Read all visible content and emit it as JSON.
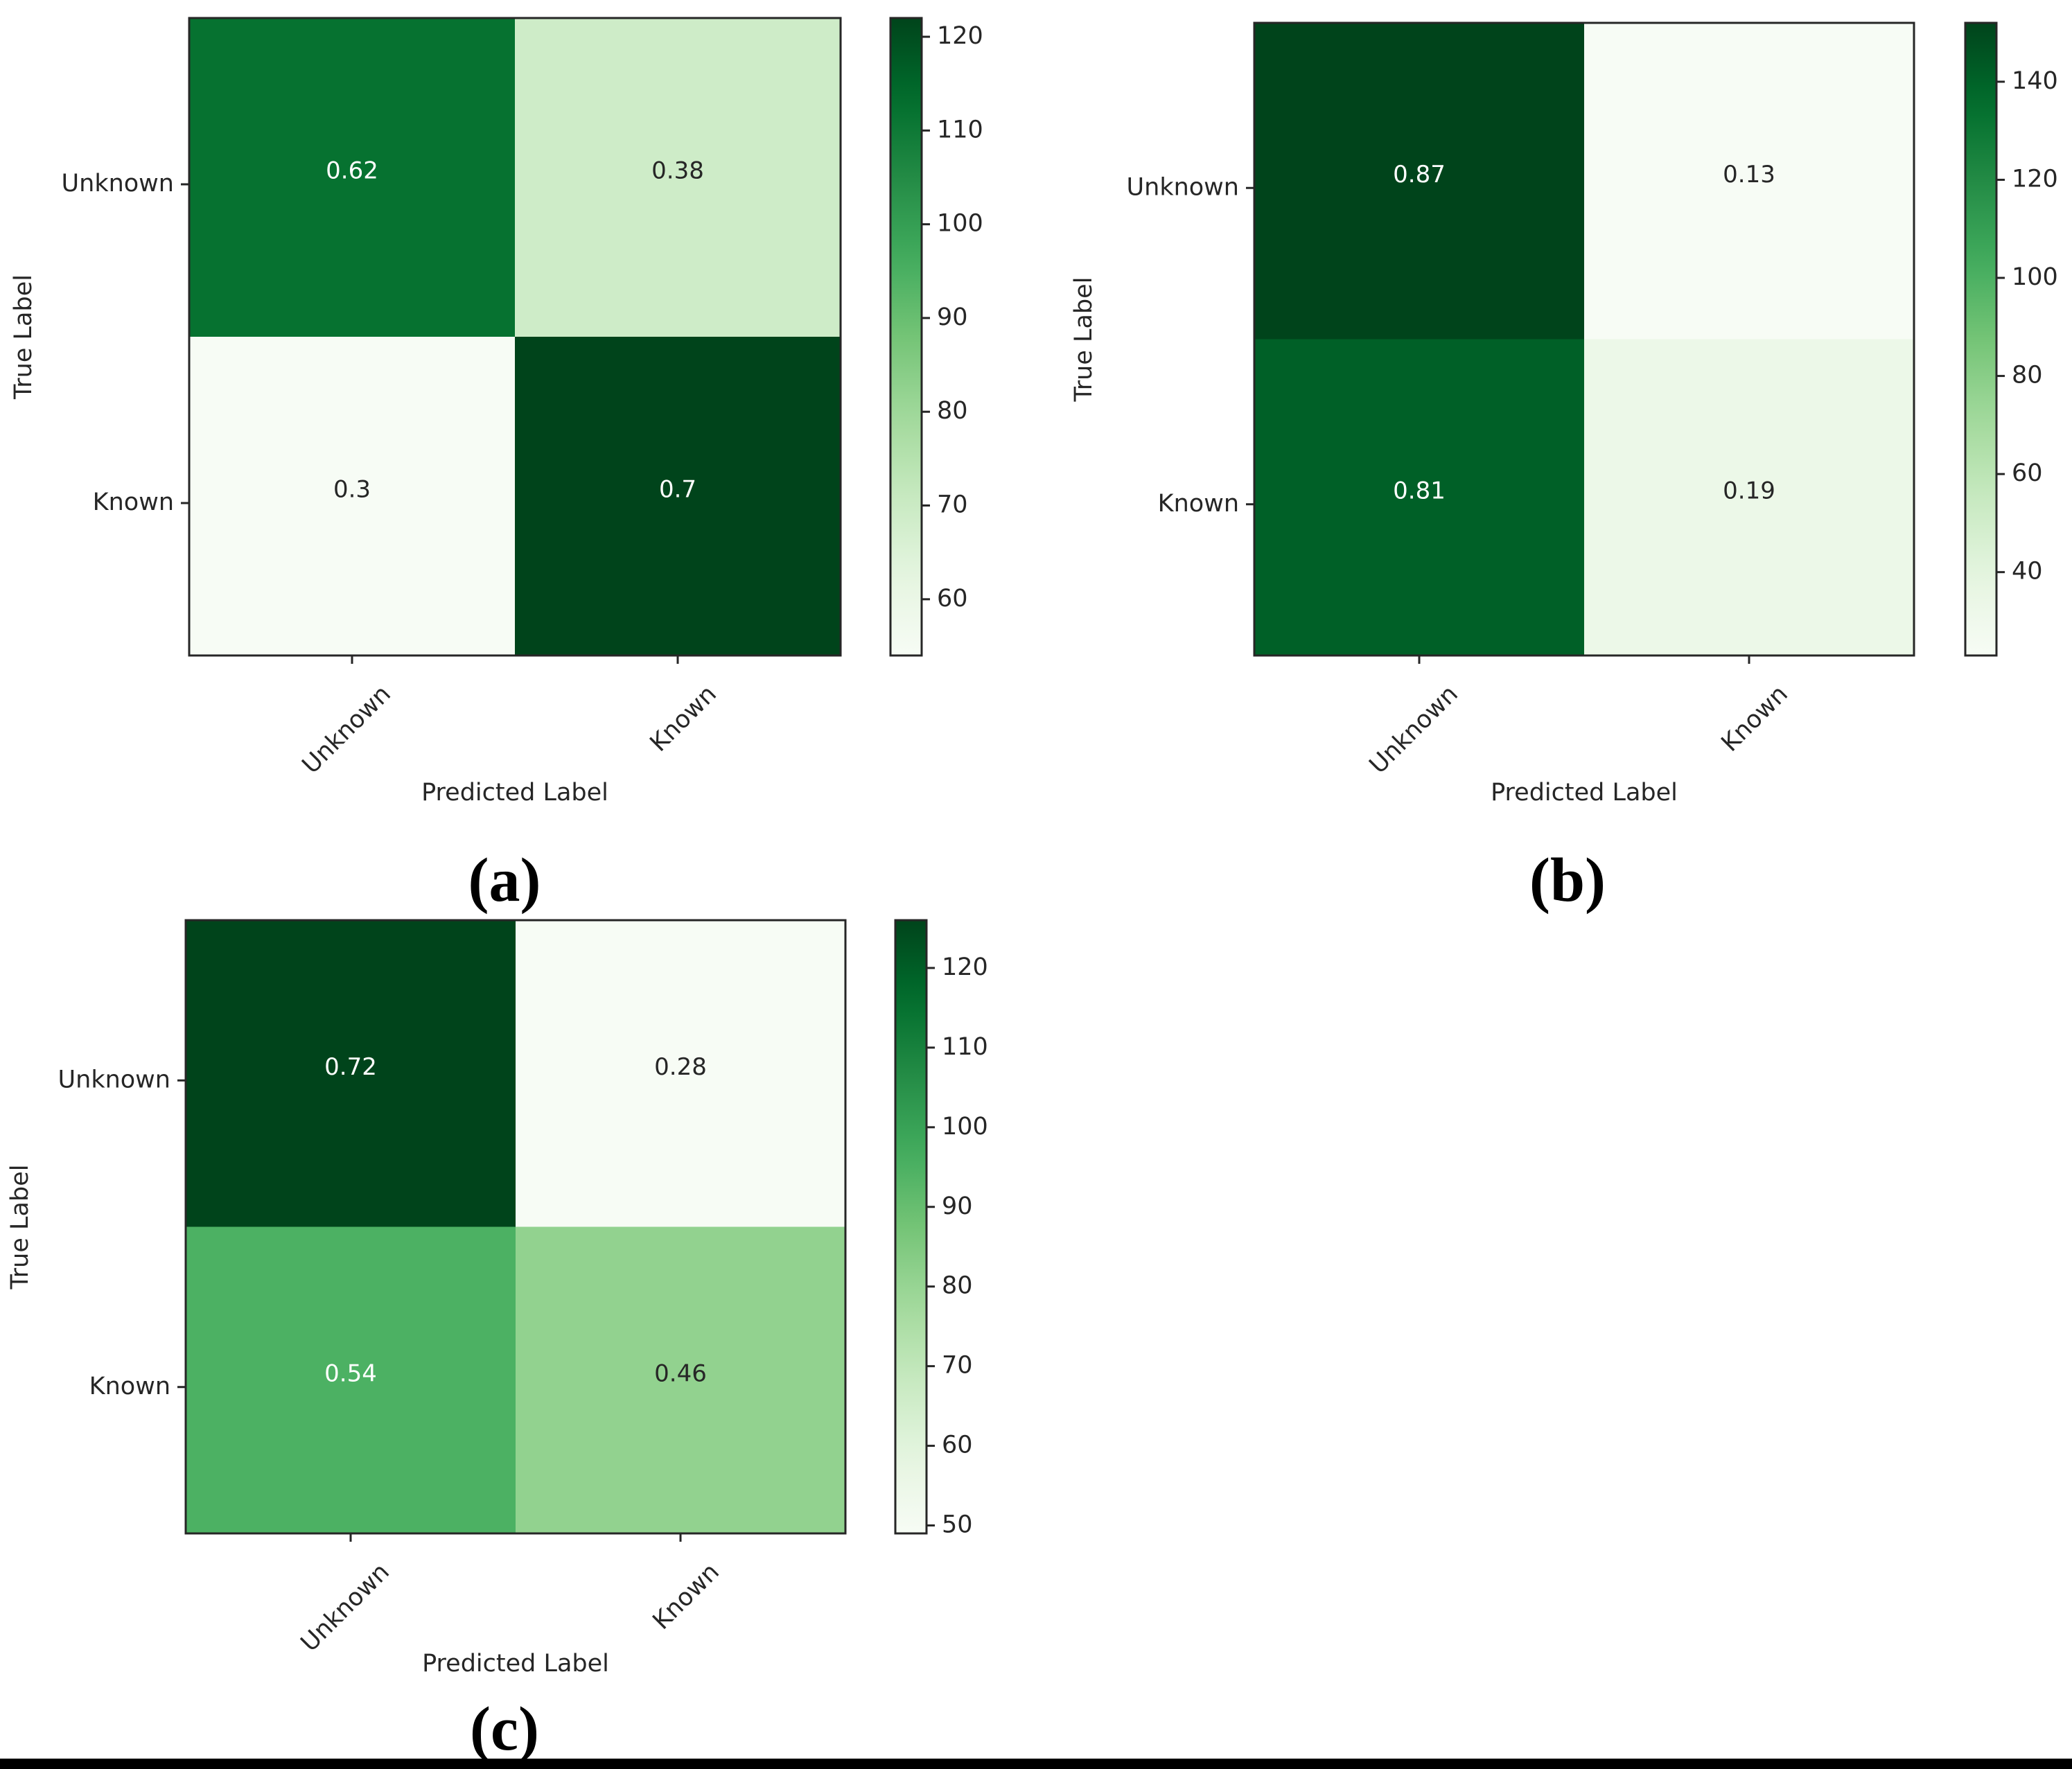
{
  "colors": {
    "cmap": [
      "#f7fcf5",
      "#e5f5e0",
      "#c7e9c0",
      "#a1d99b",
      "#74c476",
      "#41ab5d",
      "#238b45",
      "#006d2c",
      "#00441b"
    ],
    "axis": "#262626",
    "background": "#ffffff"
  },
  "chart_data": [
    {
      "type": "heatmap",
      "caption": "(a)",
      "title": "",
      "xlabel": "Predicted Label",
      "ylabel": "True Label",
      "x_categories": [
        "Unknown",
        "Known"
      ],
      "y_categories": [
        "Unknown",
        "Known"
      ],
      "cell_labels": [
        [
          "0.62",
          "0.38"
        ],
        [
          "0.3",
          "0.7"
        ]
      ],
      "counts": [
        [
          112,
          69
        ],
        [
          54,
          122
        ]
      ],
      "colorbar": {
        "min": 54,
        "max": 122,
        "ticks": [
          60,
          70,
          80,
          90,
          100,
          110,
          120
        ]
      }
    },
    {
      "type": "heatmap",
      "caption": "(b)",
      "title": "",
      "xlabel": "Predicted Label",
      "ylabel": "True Label",
      "x_categories": [
        "Unknown",
        "Known"
      ],
      "y_categories": [
        "Unknown",
        "Known"
      ],
      "cell_labels": [
        [
          "0.87",
          "0.13"
        ],
        [
          "0.81",
          "0.19"
        ]
      ],
      "counts": [
        [
          152,
          23
        ],
        [
          141,
          33
        ]
      ],
      "colorbar": {
        "min": 23,
        "max": 152,
        "ticks": [
          40,
          60,
          80,
          100,
          120,
          140
        ]
      }
    },
    {
      "type": "heatmap",
      "caption": "(c)",
      "title": "",
      "xlabel": "Predicted Label",
      "ylabel": "True Label",
      "x_categories": [
        "Unknown",
        "Known"
      ],
      "y_categories": [
        "Unknown",
        "Known"
      ],
      "cell_labels": [
        [
          "0.72",
          "0.28"
        ],
        [
          "0.54",
          "0.46"
        ]
      ],
      "counts": [
        [
          126,
          49
        ],
        [
          95,
          81
        ]
      ],
      "colorbar": {
        "min": 49,
        "max": 126,
        "ticks": [
          50,
          60,
          70,
          80,
          90,
          100,
          110,
          120
        ]
      }
    }
  ]
}
